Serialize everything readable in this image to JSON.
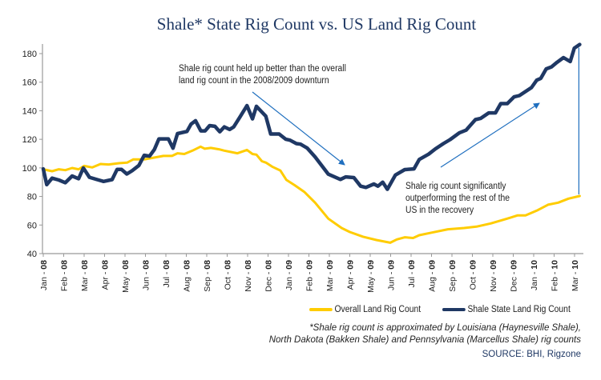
{
  "chart_data": {
    "type": "line",
    "title": "Shale* State Rig Count vs. US Land Rig Count",
    "xlabel": "",
    "ylabel": "",
    "ylim": [
      40,
      180
    ],
    "yticks": [
      40,
      60,
      80,
      100,
      120,
      140,
      160,
      180
    ],
    "categories": [
      "Jan - 08",
      "Feb - 08",
      "Mar - 08",
      "Apr - 08",
      "May - 08",
      "Jun - 08",
      "Jul - 08",
      "Aug - 08",
      "Sep - 08",
      "Oct - 08",
      "Nov - 08",
      "Dec - 08",
      "Jan - 09",
      "Feb - 09",
      "Mar - 09",
      "Apr - 09",
      "May - 09",
      "Jun - 09",
      "Jul - 09",
      "Aug - 09",
      "Sep - 09",
      "Oct - 09",
      "Nov - 09",
      "Dec - 09",
      "Jan - 10",
      "Feb - 10",
      "Mar - 10"
    ],
    "x_note": "x values are fractional month indices (0 = Jan - 08)",
    "grid": false,
    "legend_position": "bottom-right",
    "series": [
      {
        "name": "Overall Land Rig Count",
        "color": "#ffcc00",
        "points": [
          [
            0,
            99
          ],
          [
            0.43,
            97.7
          ],
          [
            0.76,
            99
          ],
          [
            1.08,
            98.4
          ],
          [
            1.41,
            99.9
          ],
          [
            1.73,
            99
          ],
          [
            2.0,
            101.4
          ],
          [
            2.4,
            100.3
          ],
          [
            2.8,
            102.7
          ],
          [
            3.2,
            102.4
          ],
          [
            3.7,
            103.3
          ],
          [
            4.1,
            103.7
          ],
          [
            4.4,
            105.9
          ],
          [
            4.94,
            105.9
          ],
          [
            5.5,
            107.4
          ],
          [
            5.88,
            108.4
          ],
          [
            6.3,
            108.4
          ],
          [
            6.57,
            110.2
          ],
          [
            6.9,
            109.7
          ],
          [
            7.3,
            112.1
          ],
          [
            7.7,
            114.9
          ],
          [
            7.9,
            113.4
          ],
          [
            8.2,
            114
          ],
          [
            8.6,
            113
          ],
          [
            8.86,
            112.1
          ],
          [
            9.5,
            110.2
          ],
          [
            9.97,
            112.6
          ],
          [
            10.24,
            109.7
          ],
          [
            10.43,
            109.3
          ],
          [
            10.7,
            104.7
          ],
          [
            10.9,
            103.7
          ],
          [
            11.2,
            100.9
          ],
          [
            11.6,
            98.2
          ],
          [
            11.9,
            91.6
          ],
          [
            12.3,
            87.9
          ],
          [
            12.78,
            83.1
          ],
          [
            13.3,
            75.7
          ],
          [
            13.95,
            64.5
          ],
          [
            14.6,
            57.9
          ],
          [
            15.0,
            55.1
          ],
          [
            15.65,
            51.8
          ],
          [
            16.3,
            49.5
          ],
          [
            16.98,
            47.6
          ],
          [
            17.3,
            49.9
          ],
          [
            17.7,
            51.4
          ],
          [
            18.1,
            50.9
          ],
          [
            18.4,
            52.9
          ],
          [
            19.0,
            54.7
          ],
          [
            19.8,
            57
          ],
          [
            20.6,
            57.9
          ],
          [
            21.2,
            58.9
          ],
          [
            21.9,
            61.1
          ],
          [
            22.7,
            64.5
          ],
          [
            23.2,
            66.7
          ],
          [
            23.6,
            66.7
          ],
          [
            24.15,
            70.1
          ],
          [
            24.7,
            74.2
          ],
          [
            25.2,
            75.7
          ],
          [
            25.7,
            78.5
          ],
          [
            26.25,
            80.3
          ]
        ]
      },
      {
        "name": "Shale State Land Rig Count",
        "color": "#1f3864",
        "points": [
          [
            0,
            99.3
          ],
          [
            0.17,
            88.3
          ],
          [
            0.43,
            92.8
          ],
          [
            0.76,
            91.5
          ],
          [
            1.08,
            89.6
          ],
          [
            1.41,
            94.3
          ],
          [
            1.73,
            92.4
          ],
          [
            1.96,
            99.9
          ],
          [
            2.26,
            93.4
          ],
          [
            2.59,
            92
          ],
          [
            2.95,
            90.5
          ],
          [
            3.37,
            91.8
          ],
          [
            3.61,
            98.9
          ],
          [
            3.83,
            98.9
          ],
          [
            4.09,
            95.7
          ],
          [
            4.35,
            98
          ],
          [
            4.68,
            101.7
          ],
          [
            4.94,
            108.8
          ],
          [
            5.2,
            108.2
          ],
          [
            5.44,
            112.9
          ],
          [
            5.66,
            120.3
          ],
          [
            6.12,
            120.3
          ],
          [
            6.35,
            113.8
          ],
          [
            6.57,
            124
          ],
          [
            7.03,
            125.5
          ],
          [
            7.23,
            130.6
          ],
          [
            7.45,
            133
          ],
          [
            7.71,
            125.9
          ],
          [
            7.92,
            125.9
          ],
          [
            8.14,
            129.6
          ],
          [
            8.4,
            129.1
          ],
          [
            8.64,
            125.3
          ],
          [
            8.86,
            128.7
          ],
          [
            9.12,
            126.9
          ],
          [
            9.32,
            128.7
          ],
          [
            9.65,
            136.2
          ],
          [
            9.97,
            143.6
          ],
          [
            10.24,
            134.3
          ],
          [
            10.43,
            143.1
          ],
          [
            10.89,
            136.2
          ],
          [
            11.13,
            123.7
          ],
          [
            11.54,
            123.7
          ],
          [
            11.87,
            120
          ],
          [
            12.07,
            119.4
          ],
          [
            12.39,
            117
          ],
          [
            12.59,
            116.6
          ],
          [
            12.92,
            113.8
          ],
          [
            13.3,
            107.7
          ],
          [
            13.95,
            95.6
          ],
          [
            14.54,
            91.9
          ],
          [
            14.8,
            93.7
          ],
          [
            15.2,
            93.2
          ],
          [
            15.53,
            87.2
          ],
          [
            15.79,
            86.3
          ],
          [
            16.18,
            88.7
          ],
          [
            16.38,
            87.2
          ],
          [
            16.61,
            90
          ],
          [
            16.84,
            85
          ],
          [
            17.23,
            95
          ],
          [
            17.69,
            98.8
          ],
          [
            18.14,
            99.3
          ],
          [
            18.4,
            105.9
          ],
          [
            18.86,
            109.6
          ],
          [
            19.19,
            113.3
          ],
          [
            19.58,
            117
          ],
          [
            19.91,
            119.8
          ],
          [
            20.36,
            124.5
          ],
          [
            20.69,
            126.4
          ],
          [
            21.15,
            133.8
          ],
          [
            21.41,
            134.7
          ],
          [
            21.8,
            138.5
          ],
          [
            22.13,
            138.5
          ],
          [
            22.39,
            145
          ],
          [
            22.71,
            145
          ],
          [
            23.04,
            149.7
          ],
          [
            23.3,
            150.6
          ],
          [
            23.89,
            156.2
          ],
          [
            24.15,
            161.4
          ],
          [
            24.35,
            162.7
          ],
          [
            24.61,
            169.3
          ],
          [
            24.87,
            170.7
          ],
          [
            25.14,
            173.9
          ],
          [
            25.46,
            177.2
          ],
          [
            25.79,
            174.4
          ],
          [
            25.99,
            183.8
          ],
          [
            26.25,
            186.4
          ]
        ]
      }
    ],
    "annotations": [
      {
        "lines": [
          "Shale rig count held up better than the overall",
          "land rig count in the 2008/2009 downturn"
        ]
      },
      {
        "lines": [
          "Shale rig count significantly",
          "outperforming the rest of the",
          "US in the recovery"
        ]
      }
    ],
    "arrow_color": "#1f6fbf"
  },
  "footnote": [
    "*Shale rig count is approximated by Louisiana (Haynesville Shale),",
    "North Dakota (Bakken Shale) and Pennsylvania (Marcellus Shale) rig counts"
  ],
  "source": "SOURCE:   BHI, Rigzone"
}
